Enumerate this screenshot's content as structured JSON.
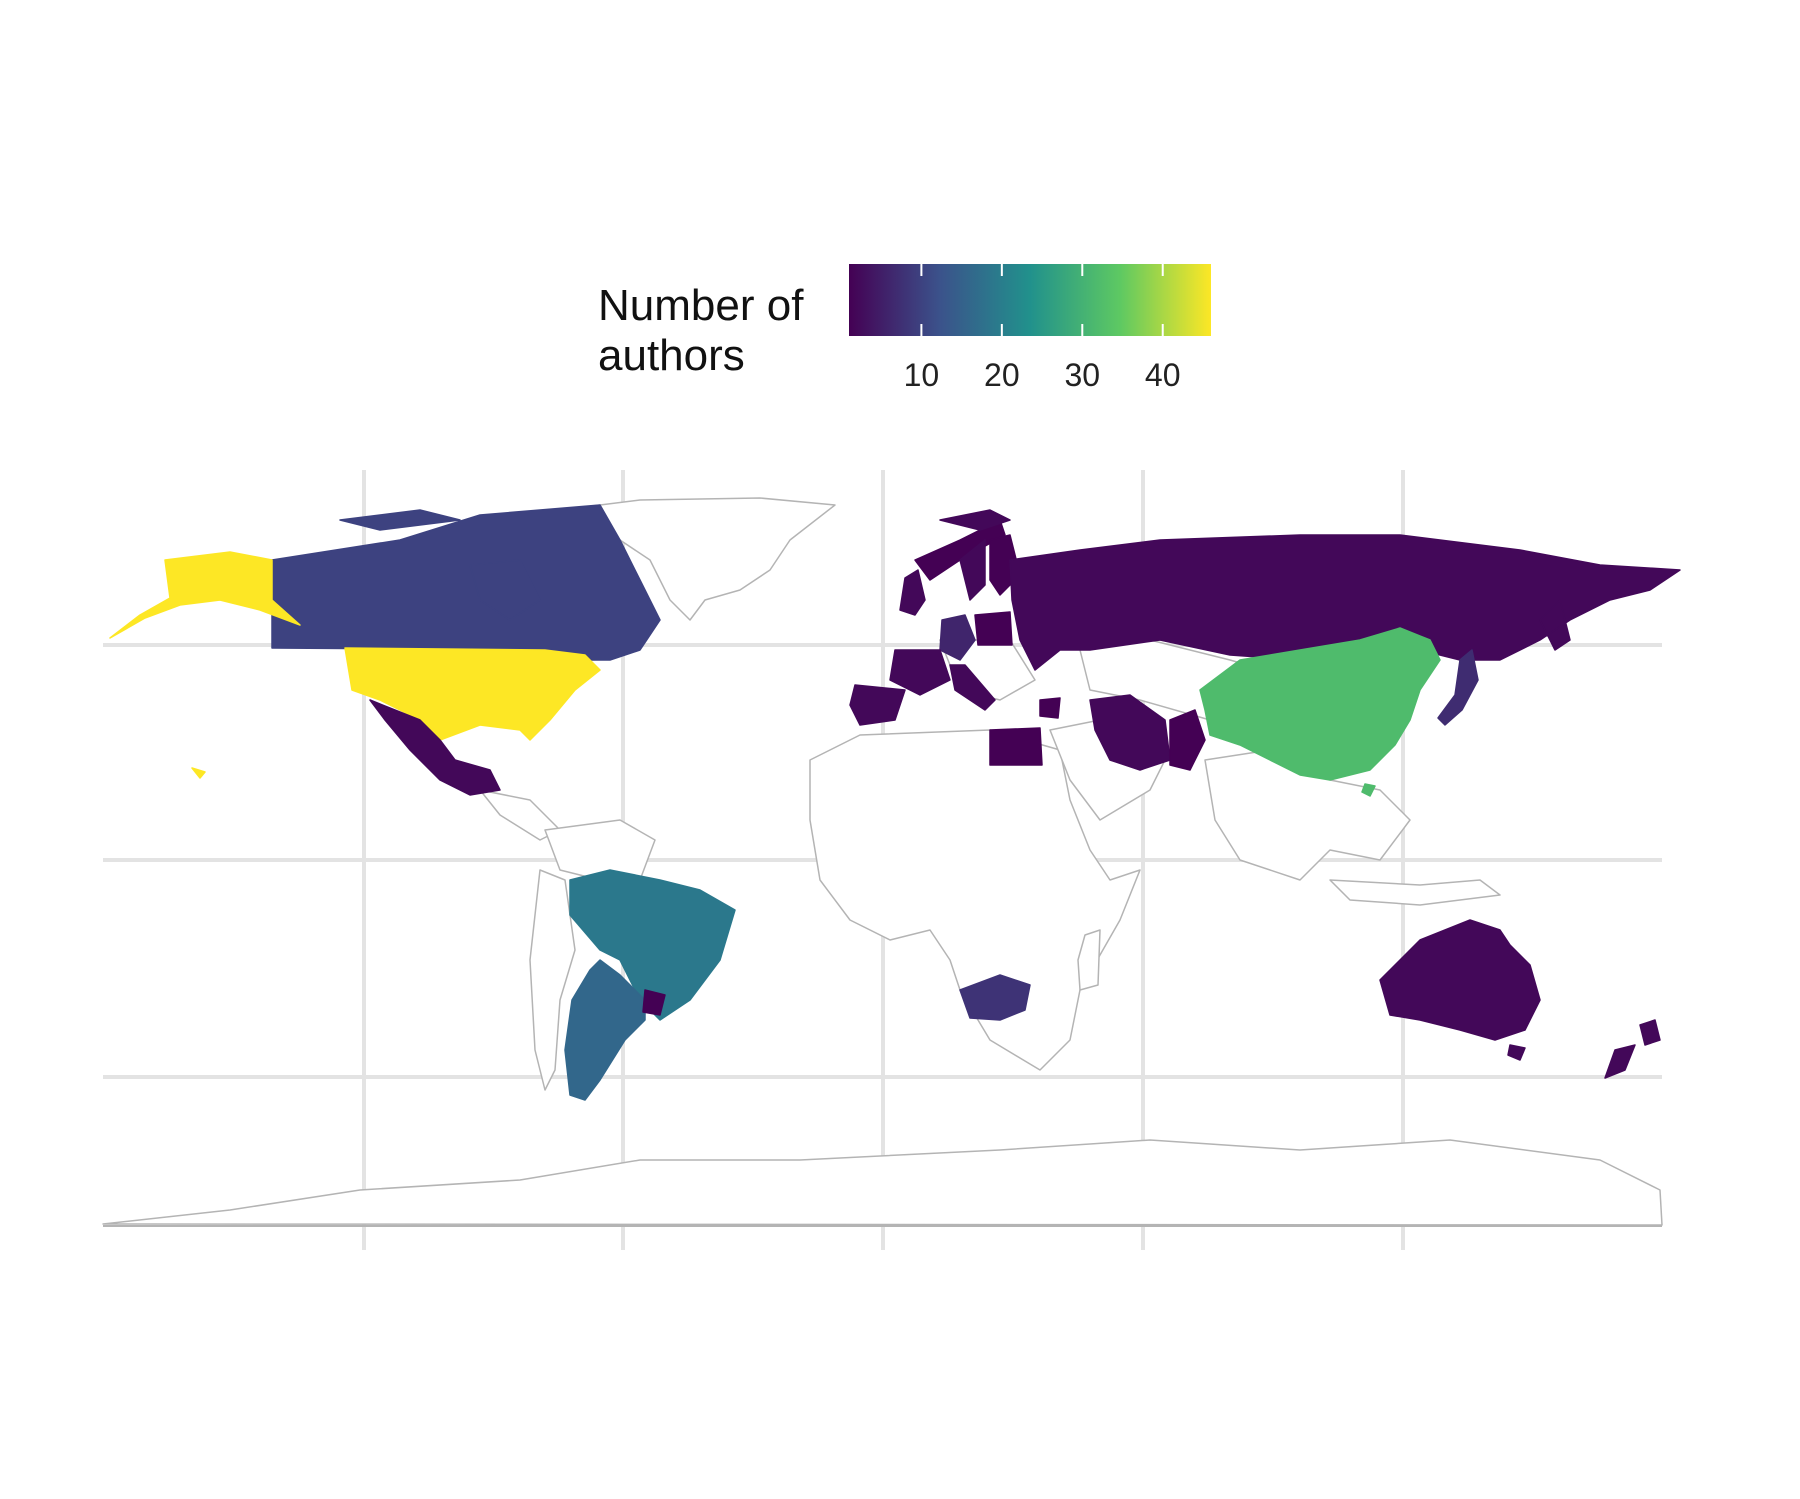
{
  "legend": {
    "title_line1": "Number of",
    "title_line2": "authors",
    "ticks": [
      "10",
      "20",
      "30",
      "40"
    ],
    "palette": [
      "#440154",
      "#3b528b",
      "#21918c",
      "#5ec962",
      "#fde725"
    ]
  },
  "colors": {
    "border": "#b4b4b4",
    "no_data_fill": "#ffffff",
    "grid": "#e3e3e3"
  },
  "chart_data": {
    "type": "choropleth",
    "variable": "Number of authors",
    "scale": "viridis",
    "range": [
      1,
      46
    ],
    "countries": [
      {
        "name": "United States",
        "value": 46
      },
      {
        "name": "China",
        "value": 32
      },
      {
        "name": "Brazil",
        "value": 19
      },
      {
        "name": "Argentina",
        "value": 16
      },
      {
        "name": "Canada",
        "value": 10
      },
      {
        "name": "South Africa",
        "value": 8
      },
      {
        "name": "Japan",
        "value": 7
      },
      {
        "name": "Germany",
        "value": 6
      },
      {
        "name": "Mexico",
        "value": 2
      },
      {
        "name": "Russia",
        "value": 2
      },
      {
        "name": "Australia",
        "value": 2
      },
      {
        "name": "New Zealand",
        "value": 2
      },
      {
        "name": "Egypt",
        "value": 1
      },
      {
        "name": "Iran",
        "value": 2
      },
      {
        "name": "Pakistan",
        "value": 1
      },
      {
        "name": "Uruguay",
        "value": 1
      },
      {
        "name": "Finland",
        "value": 1
      },
      {
        "name": "France",
        "value": 2
      },
      {
        "name": "Spain",
        "value": 2
      },
      {
        "name": "Italy",
        "value": 2
      },
      {
        "name": "Poland",
        "value": 1
      },
      {
        "name": "United Kingdom",
        "value": 2
      },
      {
        "name": "Norway",
        "value": 1
      },
      {
        "name": "Sweden",
        "value": 2
      },
      {
        "name": "Syria",
        "value": 1
      }
    ]
  }
}
